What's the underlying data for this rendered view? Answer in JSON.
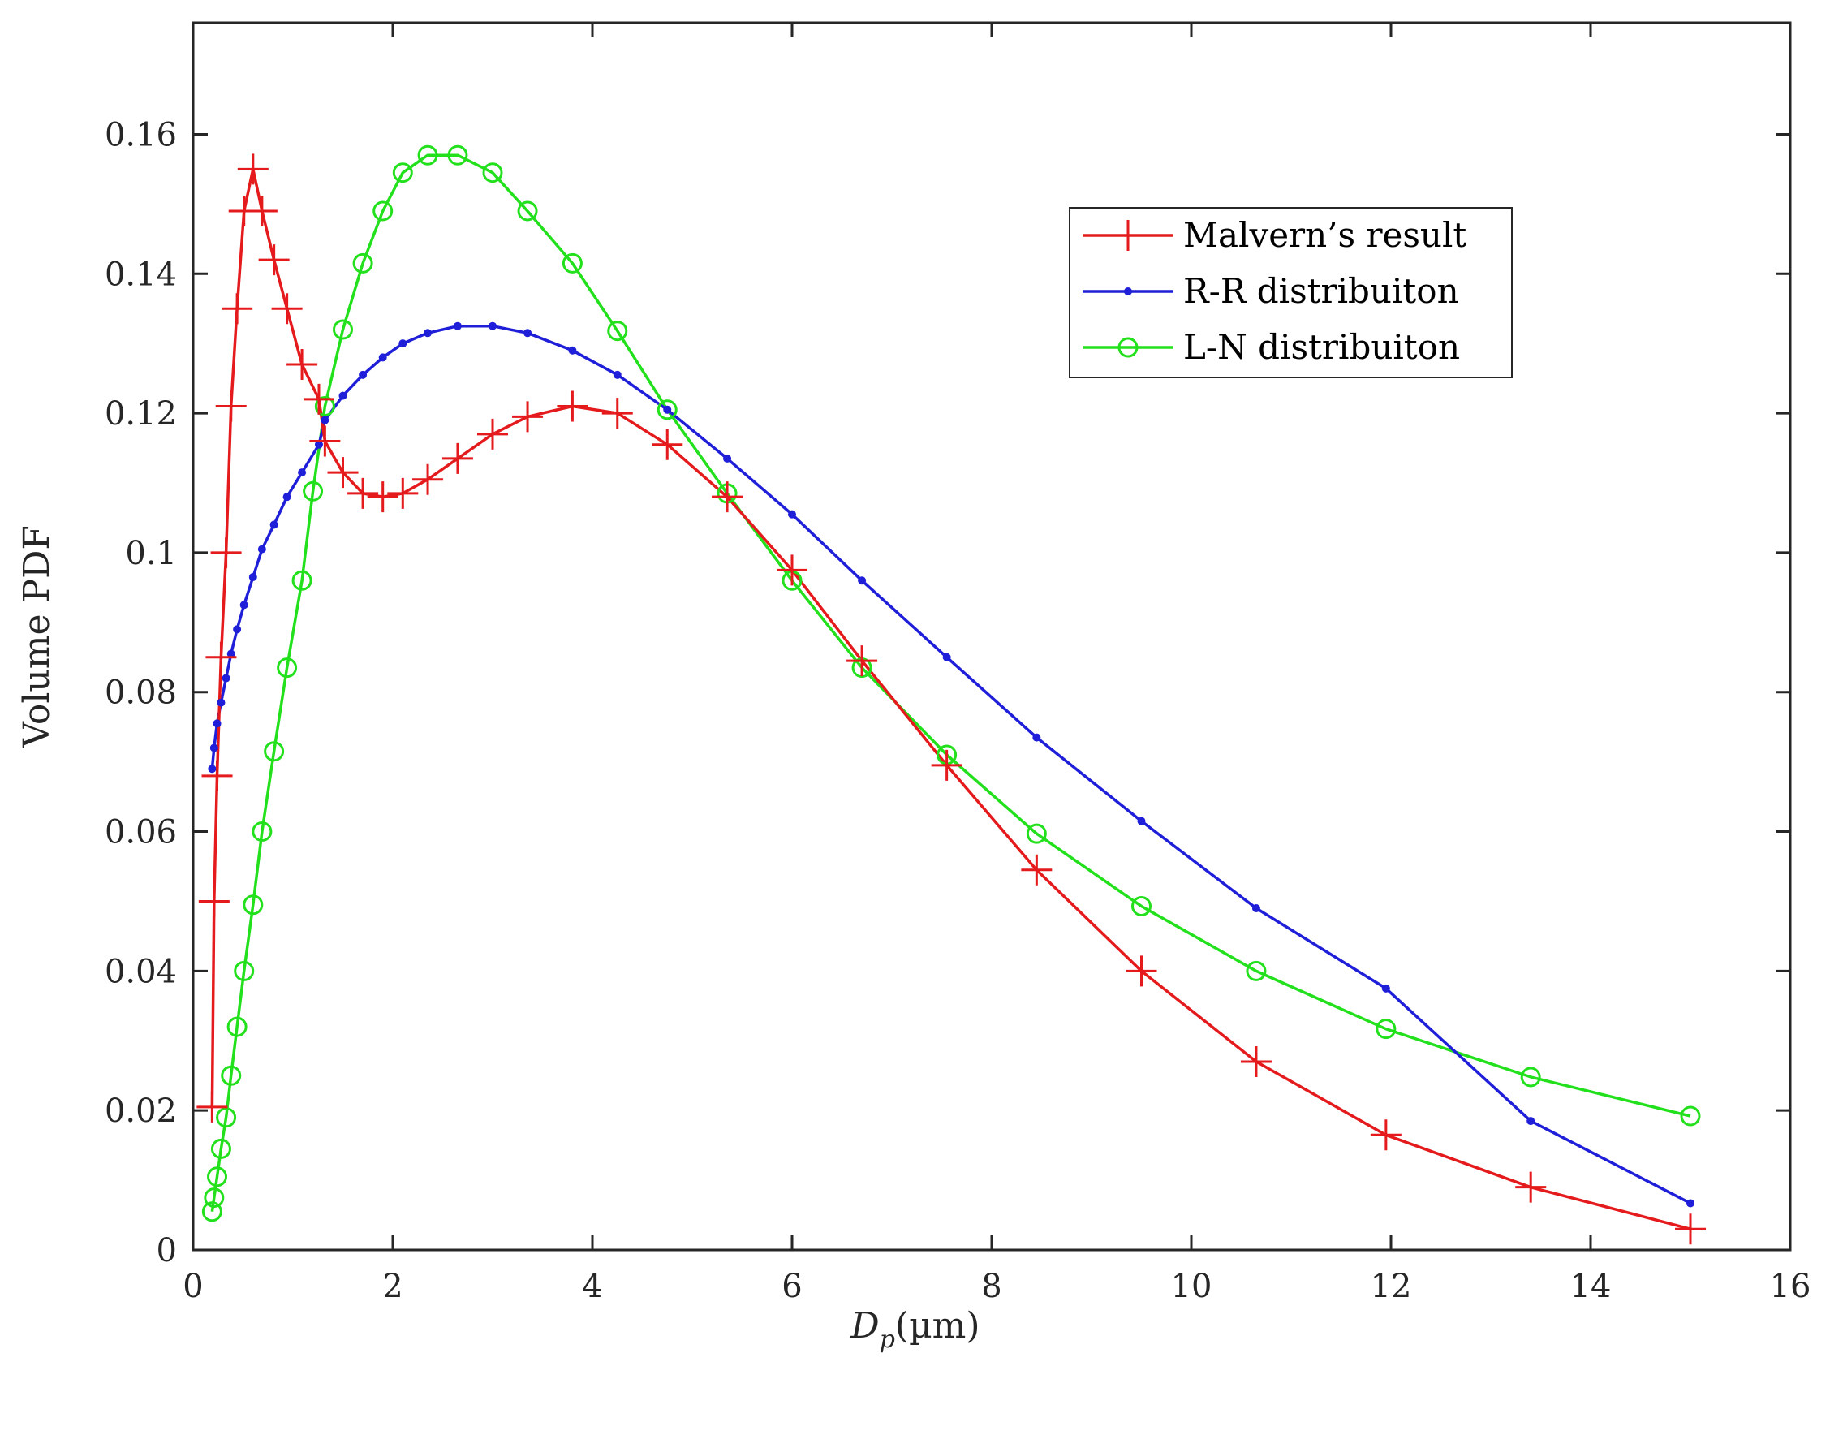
{
  "chart_data": {
    "type": "line",
    "title": "",
    "xlabel": {
      "main": "D",
      "sub": "p",
      "unit": "(µm)"
    },
    "ylabel": "Volume PDF",
    "xlim": [
      0,
      16
    ],
    "ylim": [
      0,
      0.176
    ],
    "grid": false,
    "legend_position": "top-right",
    "xticks": [
      0,
      2,
      4,
      6,
      8,
      10,
      12,
      14,
      16
    ],
    "xtick_labels": [
      "0",
      "2",
      "4",
      "6",
      "8",
      "10",
      "12",
      "14",
      "16"
    ],
    "yticks": [
      0,
      0.02,
      0.04,
      0.06,
      0.08,
      0.1,
      0.12,
      0.14,
      0.16
    ],
    "ytick_labels": [
      "0",
      "0.02",
      "0.04",
      "0.06",
      "0.08",
      "0.1",
      "0.12",
      "0.14",
      "0.16"
    ],
    "series": [
      {
        "name": "Malvern’s result",
        "color": "#e41a1c",
        "marker": "plus",
        "x": [
          0.19,
          0.21,
          0.24,
          0.28,
          0.33,
          0.38,
          0.44,
          0.51,
          0.6,
          0.69,
          0.81,
          0.94,
          1.09,
          1.26,
          1.32,
          1.5,
          1.7,
          1.9,
          2.1,
          2.35,
          2.65,
          3.0,
          3.35,
          3.8,
          4.25,
          4.75,
          5.35,
          6.0,
          6.7,
          7.55,
          8.45,
          9.5,
          10.65,
          11.95,
          13.4,
          15.0
        ],
        "y": [
          0.0205,
          0.05,
          0.068,
          0.085,
          0.1,
          0.121,
          0.135,
          0.149,
          0.155,
          0.149,
          0.142,
          0.135,
          0.127,
          0.122,
          0.116,
          0.1115,
          0.1085,
          0.108,
          0.1085,
          0.1105,
          0.1135,
          0.117,
          0.1195,
          0.121,
          0.12,
          0.1155,
          0.108,
          0.0975,
          0.0845,
          0.0695,
          0.0545,
          0.04,
          0.027,
          0.0165,
          0.009,
          0.003
        ]
      },
      {
        "name": "R-R distribuiton",
        "color": "#1f1fd9",
        "marker": "dot",
        "x": [
          0.19,
          0.21,
          0.24,
          0.28,
          0.33,
          0.38,
          0.44,
          0.51,
          0.6,
          0.69,
          0.81,
          0.94,
          1.09,
          1.26,
          1.32,
          1.5,
          1.7,
          1.9,
          2.1,
          2.35,
          2.65,
          3.0,
          3.35,
          3.8,
          4.25,
          4.75,
          5.35,
          6.0,
          6.7,
          7.55,
          8.45,
          9.5,
          10.65,
          11.95,
          13.4,
          15.0
        ],
        "y": [
          0.069,
          0.072,
          0.0755,
          0.0785,
          0.082,
          0.0855,
          0.089,
          0.0925,
          0.0965,
          0.1005,
          0.104,
          0.108,
          0.1115,
          0.1155,
          0.119,
          0.1225,
          0.1255,
          0.128,
          0.13,
          0.1315,
          0.1325,
          0.1325,
          0.1315,
          0.129,
          0.1255,
          0.1205,
          0.1135,
          0.1055,
          0.096,
          0.085,
          0.0735,
          0.0615,
          0.049,
          0.0375,
          0.0185,
          0.0067
        ]
      },
      {
        "name": "L-N distribuiton",
        "color": "#22e01c",
        "marker": "circle",
        "x": [
          0.19,
          0.21,
          0.24,
          0.28,
          0.33,
          0.38,
          0.44,
          0.51,
          0.6,
          0.69,
          0.81,
          0.94,
          1.09,
          1.2,
          1.32,
          1.5,
          1.7,
          1.9,
          2.1,
          2.35,
          2.65,
          3.0,
          3.35,
          3.8,
          4.25,
          4.75,
          5.35,
          6.0,
          6.7,
          7.55,
          8.45,
          9.5,
          10.65,
          11.95,
          13.4,
          15.0
        ],
        "y": [
          0.0055,
          0.0075,
          0.0105,
          0.0145,
          0.019,
          0.025,
          0.032,
          0.04,
          0.0495,
          0.06,
          0.0715,
          0.0835,
          0.096,
          0.1088,
          0.121,
          0.132,
          0.1415,
          0.149,
          0.1545,
          0.157,
          0.157,
          0.1545,
          0.149,
          0.1415,
          0.1318,
          0.1205,
          0.1085,
          0.096,
          0.0835,
          0.071,
          0.0597,
          0.0493,
          0.04,
          0.0317,
          0.0248,
          0.0192
        ]
      }
    ]
  }
}
